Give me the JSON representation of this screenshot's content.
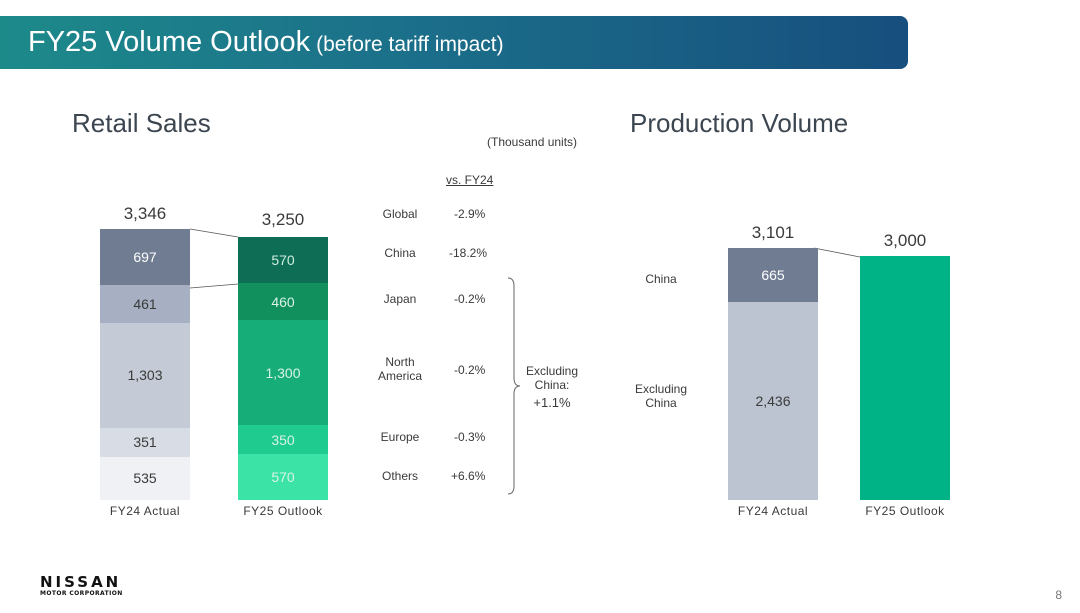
{
  "title": "FY25 Volume Outlook",
  "title_suffix": "(before tariff impact)",
  "retail": {
    "title": "Retail Sales",
    "unit": "(Thousand units)",
    "vs_header": "vs. FY24",
    "excluding_china_note": "Excluding China:",
    "excluding_china_value": "+1.1%",
    "regions": [
      {
        "name": "Global",
        "pct": "-2.9%"
      },
      {
        "name": "China",
        "pct": "-18.2%"
      },
      {
        "name": "Japan",
        "pct": "-0.2%"
      },
      {
        "name": "North America",
        "pct": "-0.2%"
      },
      {
        "name": "Europe",
        "pct": "-0.3%"
      },
      {
        "name": "Others",
        "pct": "+6.6%"
      }
    ]
  },
  "production": {
    "title": "Production Volume",
    "china_label": "China",
    "excl_china_label": "Excluding China"
  },
  "chart_data": [
    {
      "type": "bar",
      "stacked": true,
      "title": "Retail Sales",
      "unit": "Thousand units",
      "categories": [
        "FY24 Actual",
        "FY25 Outlook"
      ],
      "totals": [
        3346,
        3250
      ],
      "totals_text": [
        "3,346",
        "3,250"
      ],
      "series": [
        {
          "name": "China",
          "values": [
            697,
            570
          ],
          "labels": [
            "697",
            "570"
          ],
          "colors": [
            "#6f7c92",
            "#0d6e55"
          ]
        },
        {
          "name": "Japan",
          "values": [
            461,
            460
          ],
          "labels": [
            "461",
            "460"
          ],
          "colors": [
            "#a6b0c2",
            "#11905e"
          ]
        },
        {
          "name": "North America",
          "values": [
            1303,
            1300
          ],
          "labels": [
            "1,303",
            "1,300"
          ],
          "colors": [
            "#c5cbd6",
            "#17ad78"
          ]
        },
        {
          "name": "Europe",
          "values": [
            351,
            350
          ],
          "labels": [
            "351",
            "350"
          ],
          "colors": [
            "#d8dce4",
            "#1fcb8e"
          ]
        },
        {
          "name": "Others",
          "values": [
            535,
            570
          ],
          "labels": [
            "535",
            "570"
          ],
          "colors": [
            "#eff1f4",
            "#3be4a6"
          ]
        }
      ]
    },
    {
      "type": "bar",
      "stacked": true,
      "title": "Production Volume",
      "categories": [
        "FY24 Actual",
        "FY25 Outlook"
      ],
      "totals": [
        3101,
        3000
      ],
      "totals_text": [
        "3,101",
        "3,000"
      ],
      "series": [
        {
          "name": "China",
          "values": [
            665,
            null
          ],
          "labels": [
            "665",
            ""
          ],
          "colors": [
            "#6f7c92",
            null
          ]
        },
        {
          "name": "Excluding China",
          "values": [
            2436,
            3000
          ],
          "labels": [
            "2,436",
            ""
          ],
          "colors": [
            "#bcc4d2",
            "#00b386"
          ]
        }
      ]
    }
  ],
  "footer": {
    "logo_line1": "NISSAN",
    "logo_line2": "MOTOR CORPORATION",
    "page_number": "8"
  }
}
